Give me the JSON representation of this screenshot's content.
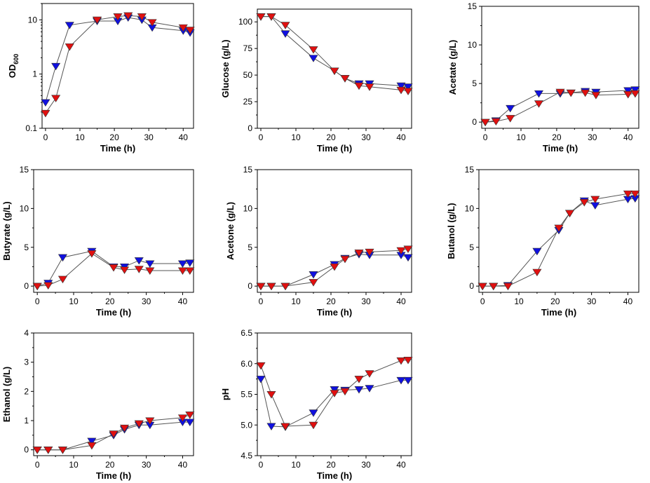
{
  "chart_data": [
    {
      "type": "line",
      "panel": "od600",
      "xlabel": "Time (h)",
      "ylabel_main": "OD",
      "ylabel_sub": "600",
      "scale": "log",
      "xlim": [
        -1,
        43
      ],
      "ylim": [
        0.1,
        20
      ],
      "xticks": [
        0,
        10,
        20,
        30,
        40
      ],
      "xtick_labels": [
        "0",
        "10",
        "20",
        "30",
        "40"
      ],
      "yticks": [
        0.1,
        1,
        10
      ],
      "ytick_labels": [
        "0.1",
        "1",
        "10"
      ],
      "series": [
        {
          "name": "blue",
          "color": "#1010e0",
          "x": [
            0,
            3,
            7,
            15,
            21,
            24,
            28,
            31,
            40,
            42
          ],
          "y": [
            0.3,
            1.4,
            8.0,
            9.5,
            9.5,
            11.0,
            10.0,
            7.2,
            6.3,
            5.8
          ]
        },
        {
          "name": "red",
          "color": "#e01010",
          "x": [
            0,
            3,
            7,
            15,
            21,
            24,
            28,
            31,
            40,
            42
          ],
          "y": [
            0.19,
            0.36,
            3.2,
            10.0,
            11.5,
            12.0,
            11.5,
            9.0,
            7.2,
            6.5
          ]
        }
      ]
    },
    {
      "type": "line",
      "panel": "glucose",
      "xlabel": "Time (h)",
      "ylabel": "Glucose (g/L)",
      "scale": "linear",
      "xlim": [
        -1,
        43
      ],
      "ylim": [
        0,
        112
      ],
      "xticks": [
        0,
        10,
        20,
        30,
        40
      ],
      "xtick_labels": [
        "0",
        "10",
        "20",
        "30",
        "40"
      ],
      "yticks": [
        0,
        25,
        50,
        75,
        100
      ],
      "ytick_labels": [
        "0",
        "25",
        "50",
        "75",
        "100"
      ],
      "series": [
        {
          "name": "blue",
          "color": "#1010e0",
          "x": [
            0,
            3,
            7,
            15,
            21,
            24,
            28,
            31,
            40,
            42
          ],
          "y": [
            105,
            105,
            89,
            66,
            54,
            47,
            42,
            42,
            40,
            39
          ]
        },
        {
          "name": "red",
          "color": "#e01010",
          "x": [
            0,
            3,
            7,
            15,
            21,
            24,
            28,
            31,
            40,
            42
          ],
          "y": [
            105,
            105,
            97,
            74,
            54,
            47,
            40,
            39,
            36,
            35
          ]
        }
      ]
    },
    {
      "type": "line",
      "panel": "acetate",
      "xlabel": "Time (h)",
      "ylabel": "Acetate (g/L)",
      "scale": "linear",
      "xlim": [
        -1,
        43
      ],
      "ylim": [
        -0.8,
        15
      ],
      "xticks": [
        0,
        10,
        20,
        30,
        40
      ],
      "xtick_labels": [
        "0",
        "10",
        "20",
        "30",
        "40"
      ],
      "yticks": [
        0,
        5,
        10,
        15
      ],
      "ytick_labels": [
        "0",
        "5",
        "10",
        "15"
      ],
      "series": [
        {
          "name": "blue",
          "color": "#1010e0",
          "x": [
            0,
            3,
            7,
            15,
            21,
            24,
            28,
            31,
            40,
            42
          ],
          "y": [
            0,
            0.2,
            1.8,
            3.7,
            3.7,
            3.8,
            4.0,
            3.9,
            4.1,
            4.2
          ]
        },
        {
          "name": "red",
          "color": "#e01010",
          "x": [
            0,
            3,
            7,
            15,
            21,
            24,
            28,
            31,
            40,
            42
          ],
          "y": [
            0,
            0.1,
            0.5,
            2.4,
            3.9,
            3.8,
            3.8,
            3.5,
            3.6,
            3.7
          ]
        }
      ]
    },
    {
      "type": "line",
      "panel": "butyrate",
      "xlabel": "Time (h)",
      "ylabel": "Butyrate (g/L)",
      "scale": "linear",
      "xlim": [
        -1,
        43
      ],
      "ylim": [
        -0.8,
        15
      ],
      "xticks": [
        0,
        10,
        20,
        30,
        40
      ],
      "xtick_labels": [
        "0",
        "10",
        "20",
        "30",
        "40"
      ],
      "yticks": [
        0,
        5,
        10,
        15
      ],
      "ytick_labels": [
        "0",
        "5",
        "10",
        "15"
      ],
      "series": [
        {
          "name": "blue",
          "color": "#1010e0",
          "x": [
            0,
            3,
            7,
            15,
            21,
            24,
            28,
            31,
            40,
            42
          ],
          "y": [
            0,
            0.4,
            3.7,
            4.5,
            2.5,
            2.5,
            3.3,
            2.9,
            2.9,
            3.0
          ]
        },
        {
          "name": "red",
          "color": "#e01010",
          "x": [
            0,
            3,
            7,
            15,
            21,
            24,
            28,
            31,
            40,
            42
          ],
          "y": [
            0,
            0.1,
            0.9,
            4.2,
            2.4,
            2.1,
            2.2,
            2.0,
            2.0,
            2.0
          ]
        }
      ]
    },
    {
      "type": "line",
      "panel": "acetone",
      "xlabel": "Time (h)",
      "ylabel": "Acetone (g/L)",
      "scale": "linear",
      "xlim": [
        -1,
        43
      ],
      "ylim": [
        -0.8,
        15
      ],
      "xticks": [
        0,
        10,
        20,
        30,
        40
      ],
      "xtick_labels": [
        "0",
        "10",
        "20",
        "30",
        "40"
      ],
      "yticks": [
        0,
        5,
        10,
        15
      ],
      "ytick_labels": [
        "0",
        "5",
        "10",
        "15"
      ],
      "series": [
        {
          "name": "blue",
          "color": "#1010e0",
          "x": [
            0,
            3,
            7,
            15,
            21,
            24,
            28,
            31,
            40,
            42
          ],
          "y": [
            0,
            0,
            0,
            1.5,
            2.8,
            3.6,
            4.1,
            4.0,
            4.0,
            3.7
          ]
        },
        {
          "name": "red",
          "color": "#e01010",
          "x": [
            0,
            3,
            7,
            15,
            21,
            24,
            28,
            31,
            40,
            42
          ],
          "y": [
            0,
            0,
            0,
            0.5,
            2.5,
            3.5,
            4.3,
            4.4,
            4.6,
            4.8
          ]
        }
      ]
    },
    {
      "type": "line",
      "panel": "butanol",
      "xlabel": "Time (h)",
      "ylabel": "Butanol (g/L)",
      "scale": "linear",
      "xlim": [
        -1,
        43
      ],
      "ylim": [
        -0.8,
        15
      ],
      "xticks": [
        0,
        10,
        20,
        30,
        40
      ],
      "xtick_labels": [
        "0",
        "10",
        "20",
        "30",
        "40"
      ],
      "yticks": [
        0,
        5,
        10,
        15
      ],
      "ytick_labels": [
        "0",
        "5",
        "10",
        "15"
      ],
      "series": [
        {
          "name": "blue",
          "color": "#1010e0",
          "x": [
            0,
            3,
            7,
            15,
            21,
            24,
            28,
            31,
            40,
            42
          ],
          "y": [
            0,
            0,
            0.1,
            4.5,
            7.2,
            9.4,
            11.0,
            10.4,
            11.2,
            11.3
          ]
        },
        {
          "name": "red",
          "color": "#e01010",
          "x": [
            0,
            3,
            7,
            15,
            21,
            24,
            28,
            31,
            40,
            42
          ],
          "y": [
            0,
            0,
            0,
            1.8,
            7.5,
            9.4,
            10.8,
            11.2,
            11.9,
            11.9
          ]
        }
      ]
    },
    {
      "type": "line",
      "panel": "ethanol",
      "xlabel": "Time (h)",
      "ylabel": "Ethanol (g/L)",
      "scale": "linear",
      "xlim": [
        -1,
        43
      ],
      "ylim": [
        -0.2,
        4
      ],
      "xticks": [
        0,
        10,
        20,
        30,
        40
      ],
      "xtick_labels": [
        "0",
        "10",
        "20",
        "30",
        "40"
      ],
      "yticks": [
        0,
        1,
        2,
        3,
        4
      ],
      "ytick_labels": [
        "0",
        "1",
        "2",
        "3",
        "4"
      ],
      "series": [
        {
          "name": "blue",
          "color": "#1010e0",
          "x": [
            0,
            3,
            7,
            15,
            21,
            24,
            28,
            31,
            40,
            42
          ],
          "y": [
            0,
            0,
            0,
            0.3,
            0.5,
            0.7,
            0.85,
            0.85,
            0.95,
            0.95
          ]
        },
        {
          "name": "red",
          "color": "#e01010",
          "x": [
            0,
            3,
            7,
            15,
            21,
            24,
            28,
            31,
            40,
            42
          ],
          "y": [
            0,
            0,
            0,
            0.15,
            0.55,
            0.75,
            0.9,
            1.0,
            1.1,
            1.2
          ]
        }
      ]
    },
    {
      "type": "line",
      "panel": "ph",
      "xlabel": "Time (h)",
      "ylabel": "pH",
      "scale": "linear",
      "xlim": [
        -1,
        43
      ],
      "ylim": [
        4.5,
        6.5
      ],
      "xticks": [
        0,
        10,
        20,
        30,
        40
      ],
      "xtick_labels": [
        "0",
        "10",
        "20",
        "30",
        "40"
      ],
      "yticks": [
        4.5,
        5.0,
        5.5,
        6.0,
        6.5
      ],
      "ytick_labels": [
        "4.5",
        "5.0",
        "5.5",
        "6.0",
        "6.5"
      ],
      "series": [
        {
          "name": "blue",
          "color": "#1010e0",
          "x": [
            0,
            3,
            7,
            15,
            21,
            24,
            28,
            31,
            40,
            42
          ],
          "y": [
            5.75,
            4.98,
            4.97,
            5.2,
            5.58,
            5.57,
            5.58,
            5.6,
            5.73,
            5.73
          ]
        },
        {
          "name": "red",
          "color": "#e01010",
          "x": [
            0,
            3,
            7,
            15,
            21,
            24,
            28,
            31,
            40,
            42
          ],
          "y": [
            5.97,
            5.5,
            4.98,
            5.0,
            5.52,
            5.55,
            5.75,
            5.84,
            6.05,
            6.06
          ]
        }
      ]
    }
  ]
}
